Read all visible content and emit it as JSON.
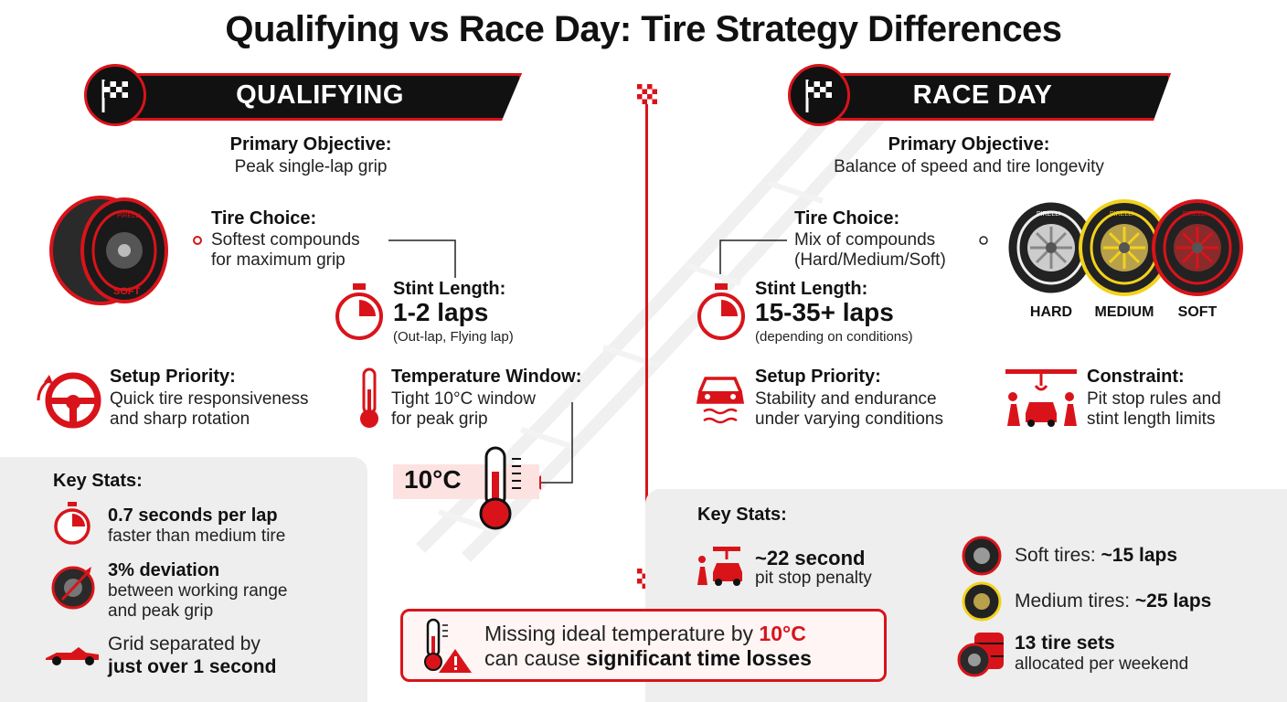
{
  "title": "Qualifying vs Race Day: Tire Strategy Differences",
  "colors": {
    "accent": "#d8141a",
    "dark": "#111111",
    "medium_tire": "#f2d21b",
    "panel": "#eeeeee"
  },
  "qualifying": {
    "banner": "QUALIFYING",
    "objective_heading": "Primary Objective:",
    "objective_text": "Peak single-lap grip",
    "tire_choice_heading": "Tire Choice:",
    "tire_choice_line1": "Softest compounds",
    "tire_choice_line2": "for maximum grip",
    "tire_label": "SOFT",
    "stint_heading": "Stint Length:",
    "stint_value": "1-2 laps",
    "stint_note": "(Out-lap, Flying lap)",
    "setup_heading": "Setup Priority:",
    "setup_line1": "Quick tire responsiveness",
    "setup_line2": "and sharp rotation",
    "temp_heading": "Temperature Window:",
    "temp_line1": "Tight 10°C window",
    "temp_line2": "for peak grip",
    "temp_value": "10°C",
    "stats_heading": "Key Stats:",
    "stat1_bold": "0.7 seconds per lap",
    "stat1_text": "faster than medium tire",
    "stat2_bold": "3% deviation",
    "stat2_line1": "between working range",
    "stat2_line2": "and peak grip",
    "stat3_line1": "Grid separated by",
    "stat3_bold": "just over 1 second"
  },
  "race": {
    "banner": "RACE DAY",
    "objective_heading": "Primary Objective:",
    "objective_text": "Balance of speed and tire longevity",
    "tire_choice_heading": "Tire Choice:",
    "tire_choice_line1": "Mix of compounds",
    "tire_choice_line2": "(Hard/Medium/Soft)",
    "tire_labels": [
      "HARD",
      "MEDIUM",
      "SOFT"
    ],
    "stint_heading": "Stint Length:",
    "stint_value": "15-35+ laps",
    "stint_note": "(depending on conditions)",
    "setup_heading": "Setup Priority:",
    "setup_line1": "Stability and endurance",
    "setup_line2": "under varying conditions",
    "constraint_heading": "Constraint:",
    "constraint_line1": "Pit stop rules and",
    "constraint_line2": "stint length limits",
    "stats_heading": "Key Stats:",
    "stat1_bold": "~22 second",
    "stat1_text": "pit stop penalty",
    "stat2_text": "Soft tires: ",
    "stat2_bold": "~15 laps",
    "stat3_text": "Medium tires: ",
    "stat3_bold": "~25 laps",
    "stat4_bold": "13 tire sets",
    "stat4_text": "allocated per weekend"
  },
  "callout": {
    "part1": "Missing ideal temperature by ",
    "part2": "10°C",
    "part3": "can cause ",
    "part4": "significant time losses"
  }
}
